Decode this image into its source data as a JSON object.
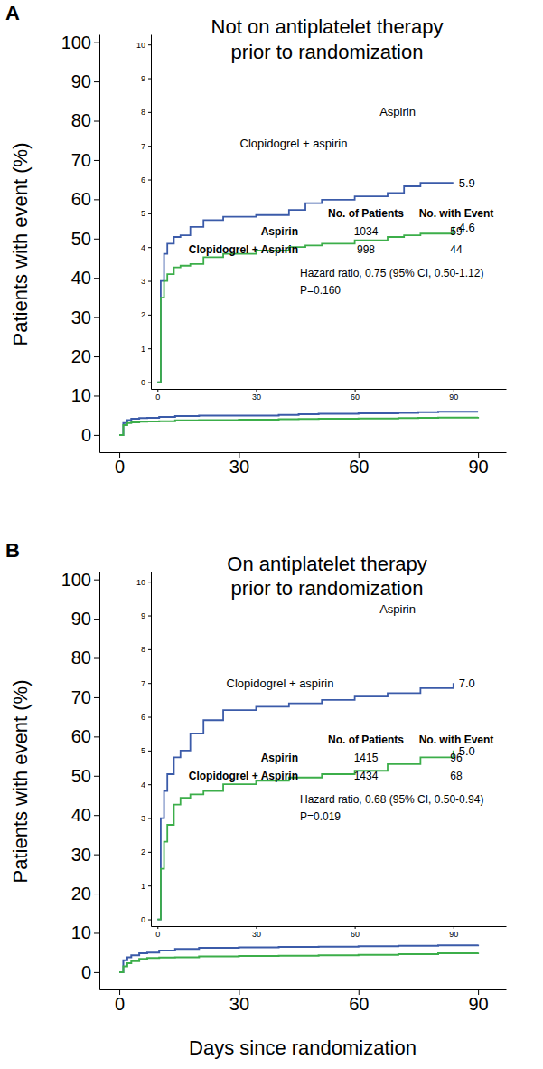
{
  "chart_data": [
    {
      "type": "line",
      "panel": "A",
      "y_label": "Patients with event (%)",
      "xlim": [
        -5,
        97
      ],
      "xticks": [
        0,
        30,
        60,
        90
      ],
      "ylim": [
        -4.4,
        102
      ],
      "yticks": [
        0,
        10,
        20,
        30,
        40,
        50,
        60,
        70,
        80,
        90,
        100
      ],
      "x": [
        0,
        1,
        2,
        3,
        5,
        7,
        10,
        14,
        20,
        30,
        40,
        45,
        50,
        60,
        70,
        75,
        80,
        90
      ],
      "series": [
        {
          "color": "#3b5ba9",
          "values": [
            0,
            3.0,
            3.8,
            4.1,
            4.3,
            4.35,
            4.6,
            4.8,
            4.9,
            4.95,
            5.1,
            5.3,
            5.4,
            5.5,
            5.6,
            5.8,
            5.9,
            5.9
          ]
        },
        {
          "color": "#3cae4a",
          "values": [
            0,
            2.5,
            3.0,
            3.2,
            3.4,
            3.45,
            3.5,
            3.7,
            3.8,
            3.9,
            4.0,
            4.05,
            4.1,
            4.2,
            4.3,
            4.35,
            4.4,
            4.6
          ]
        }
      ]
    },
    {
      "type": "line",
      "title": [
        "Not on antiplatelet therapy",
        "prior to randomization"
      ],
      "xlim": [
        -2,
        106
      ],
      "xticks": [
        0,
        30,
        60,
        90
      ],
      "ylim": [
        -0.2,
        10.3
      ],
      "yticks": [
        0,
        1,
        2,
        3,
        4,
        5,
        6,
        7,
        8,
        9,
        10
      ],
      "x": [
        0,
        1,
        2,
        3,
        5,
        7,
        10,
        14,
        20,
        30,
        40,
        45,
        50,
        60,
        70,
        75,
        80,
        90
      ],
      "series": [
        {
          "name": "Aspirin",
          "color": "#3b5ba9",
          "end_label": "5.9",
          "values": [
            0,
            3.0,
            3.8,
            4.1,
            4.3,
            4.35,
            4.6,
            4.8,
            4.9,
            4.95,
            5.1,
            5.3,
            5.4,
            5.5,
            5.6,
            5.8,
            5.9,
            5.9
          ]
        },
        {
          "name": "Clopidogrel + aspirin",
          "color": "#3cae4a",
          "end_label": "4.6",
          "values": [
            0,
            2.5,
            3.0,
            3.2,
            3.4,
            3.45,
            3.5,
            3.7,
            3.8,
            3.9,
            4.0,
            4.05,
            4.1,
            4.2,
            4.3,
            4.35,
            4.4,
            4.6
          ]
        }
      ],
      "table": {
        "headers": [
          "No. of Patients",
          "No. with Event"
        ],
        "rows": [
          [
            "Aspirin",
            1034,
            59
          ],
          [
            "Clopidogrel + Aspirin",
            998,
            44
          ]
        ]
      },
      "annotations": [
        "Hazard ratio, 0.75 (95% CI, 0.50-1.12)",
        "P=0.160"
      ]
    },
    {
      "type": "line",
      "panel": "B",
      "y_label": "Patients with event (%)",
      "x_label": "Days since randomization",
      "xlim": [
        -5,
        97
      ],
      "xticks": [
        0,
        30,
        60,
        90
      ],
      "ylim": [
        -4.4,
        102
      ],
      "yticks": [
        0,
        10,
        20,
        30,
        40,
        50,
        60,
        70,
        80,
        90,
        100
      ],
      "x": [
        0,
        1,
        2,
        3,
        5,
        7,
        10,
        14,
        20,
        30,
        40,
        50,
        60,
        70,
        80,
        90
      ],
      "series": [
        {
          "color": "#3b5ba9",
          "values": [
            0,
            3.0,
            3.8,
            4.3,
            4.8,
            5.0,
            5.5,
            5.9,
            6.2,
            6.3,
            6.4,
            6.5,
            6.6,
            6.7,
            6.85,
            7.0
          ]
        },
        {
          "color": "#3cae4a",
          "values": [
            0,
            1.5,
            2.3,
            2.8,
            3.4,
            3.6,
            3.7,
            3.8,
            4.0,
            4.1,
            4.2,
            4.3,
            4.4,
            4.6,
            4.8,
            5.0
          ]
        }
      ]
    },
    {
      "type": "line",
      "title": [
        "On antiplatelet therapy",
        "prior to randomization"
      ],
      "xlim": [
        -2,
        106
      ],
      "xticks": [
        0,
        30,
        60,
        90
      ],
      "ylim": [
        -0.2,
        10.3
      ],
      "yticks": [
        0,
        1,
        2,
        3,
        4,
        5,
        6,
        7,
        8,
        9,
        10
      ],
      "x": [
        0,
        1,
        2,
        3,
        5,
        7,
        10,
        14,
        20,
        30,
        40,
        50,
        60,
        70,
        80,
        90
      ],
      "series": [
        {
          "name": "Aspirin",
          "color": "#3b5ba9",
          "end_label": "7.0",
          "values": [
            0,
            3.0,
            3.8,
            4.3,
            4.8,
            5.0,
            5.5,
            5.9,
            6.2,
            6.3,
            6.4,
            6.5,
            6.6,
            6.7,
            6.85,
            7.0
          ]
        },
        {
          "name": "Clopidogrel + aspirin",
          "color": "#3cae4a",
          "end_label": "5.0",
          "values": [
            0,
            1.5,
            2.3,
            2.8,
            3.4,
            3.6,
            3.7,
            3.8,
            4.0,
            4.1,
            4.2,
            4.3,
            4.4,
            4.6,
            4.8,
            5.0
          ]
        }
      ],
      "table": {
        "headers": [
          "No. of Patients",
          "No. with Event"
        ],
        "rows": [
          [
            "Aspirin",
            1415,
            96
          ],
          [
            "Clopidogrel + Aspirin",
            1434,
            68
          ]
        ]
      },
      "annotations": [
        "Hazard ratio, 0.68 (95% CI, 0.50-0.94)",
        "P=0.019"
      ]
    }
  ]
}
